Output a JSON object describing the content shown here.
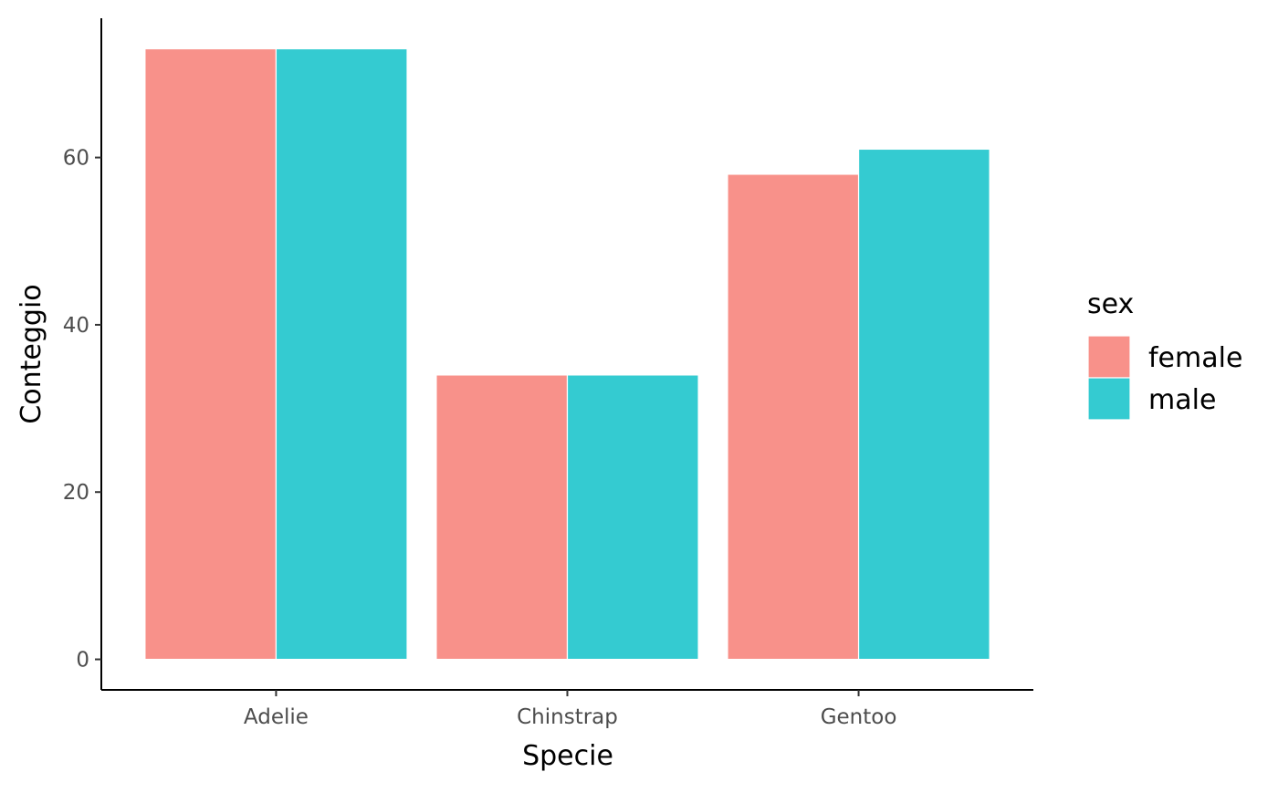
{
  "chart_data": {
    "type": "bar",
    "categories": [
      "Adelie",
      "Chinstrap",
      "Gentoo"
    ],
    "series": [
      {
        "name": "female",
        "values": [
          73,
          34,
          58
        ],
        "color": "#f8918a"
      },
      {
        "name": "male",
        "values": [
          73,
          34,
          61
        ],
        "color": "#34cbd1"
      }
    ],
    "xlabel": "Specie",
    "ylabel": "Conteggio",
    "yticks": [
      0,
      20,
      40,
      60
    ],
    "ylim": [
      -3.65,
      76.65
    ],
    "grid": false,
    "legend": {
      "title": "sex",
      "placement": "right"
    }
  }
}
